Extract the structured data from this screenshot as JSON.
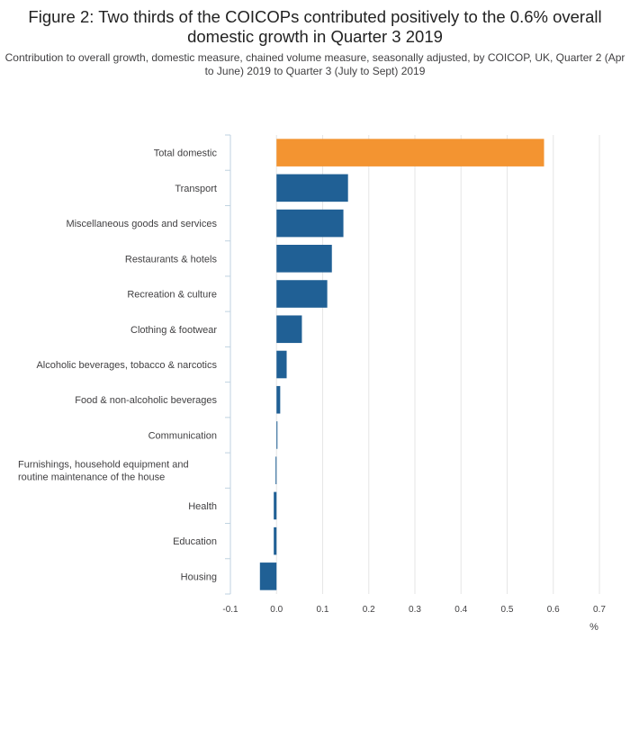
{
  "header": {
    "title": "Figure 2: Two thirds of the COICOPs contributed positively to the 0.6% overall domestic growth in Quarter 3 2019",
    "subtitle": "Contribution to overall growth, domestic measure, chained volume measure, seasonally adjusted, by COICOP, UK, Quarter 2 (Apr to June) 2019 to Quarter 3 (July to Sept) 2019"
  },
  "chart_data": {
    "type": "bar",
    "orientation": "horizontal",
    "title": "Figure 2: Two thirds of the COICOPs contributed positively to the 0.6% overall domestic growth in Quarter 3 2019",
    "subtitle": "Contribution to overall growth, domestic measure, chained volume measure, seasonally adjusted, by COICOP, UK, Quarter 2 (Apr to June) 2019 to Quarter 3 (July to Sept) 2019",
    "categories": [
      "Total domestic",
      "Transport",
      "Miscellaneous goods and services",
      "Restaurants & hotels",
      "Recreation & culture",
      "Clothing & footwear",
      "Alcoholic beverages, tobacco & narcotics",
      "Food & non-alcoholic beverages",
      "Communication",
      "Furnishings, household equipment and routine maintenance of the house",
      "Health",
      "Education",
      "Housing"
    ],
    "values": [
      0.58,
      0.155,
      0.145,
      0.12,
      0.11,
      0.055,
      0.022,
      0.008,
      0.002,
      -0.002,
      -0.006,
      -0.006,
      -0.036
    ],
    "highlight_index": 0,
    "colors": {
      "highlight": "#f39431",
      "default": "#206095",
      "grid": "#e6e6e6",
      "axis": "#bfd2e0"
    },
    "xlim": [
      -0.1,
      0.7
    ],
    "xticks": [
      -0.1,
      0.0,
      0.1,
      0.2,
      0.3,
      0.4,
      0.5,
      0.6,
      0.7
    ],
    "xtick_labels": [
      "-0.1",
      "0.0",
      "0.1",
      "0.2",
      "0.3",
      "0.4",
      "0.5",
      "0.6",
      "0.7"
    ],
    "xlabel": "%",
    "ylabel": "",
    "grid": true,
    "legend": "none"
  }
}
